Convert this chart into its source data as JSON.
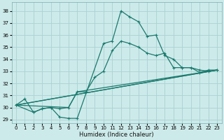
{
  "xlabel": "Humidex (Indice chaleur)",
  "xlim": [
    -0.5,
    23.5
  ],
  "ylim": [
    28.7,
    38.7
  ],
  "yticks": [
    29,
    30,
    31,
    32,
    33,
    34,
    35,
    36,
    37,
    38
  ],
  "xticks": [
    0,
    1,
    2,
    3,
    4,
    5,
    6,
    7,
    8,
    9,
    10,
    11,
    12,
    13,
    14,
    15,
    16,
    17,
    18,
    19,
    20,
    21,
    22,
    23
  ],
  "bg_color": "#cdeaea",
  "grid_color": "#aed4d4",
  "line_color": "#1a7a6e",
  "line1_x": [
    0,
    1,
    2,
    3,
    4,
    5,
    6,
    7,
    10,
    11,
    12,
    13,
    14,
    15,
    16,
    17,
    18,
    19,
    20,
    21,
    22,
    23
  ],
  "line1_y": [
    30.2,
    30.7,
    29.6,
    29.9,
    30.0,
    29.2,
    29.1,
    29.1,
    35.3,
    35.5,
    38.0,
    37.5,
    37.1,
    35.9,
    36.0,
    34.3,
    34.0,
    33.3,
    33.3,
    32.9,
    33.1,
    33.1
  ],
  "line2_x": [
    0,
    2,
    3,
    4,
    5,
    6,
    7,
    8,
    9,
    10,
    11,
    12,
    13,
    14,
    15,
    16,
    17,
    18,
    19,
    20,
    21,
    22,
    23
  ],
  "line2_y": [
    30.2,
    29.6,
    29.9,
    30.0,
    29.9,
    30.0,
    31.3,
    31.3,
    32.5,
    33.0,
    34.7,
    35.5,
    35.3,
    35.0,
    34.5,
    34.3,
    34.5,
    33.3,
    33.3,
    33.3,
    33.1,
    33.0,
    33.1
  ],
  "line3_x": [
    0,
    23
  ],
  "line3_y": [
    30.2,
    33.1
  ],
  "line4_x": [
    0,
    23
  ],
  "line4_y": [
    30.2,
    33.1
  ],
  "line5_x": [
    0,
    6,
    7,
    23
  ],
  "line5_y": [
    30.2,
    30.0,
    31.3,
    33.1
  ]
}
